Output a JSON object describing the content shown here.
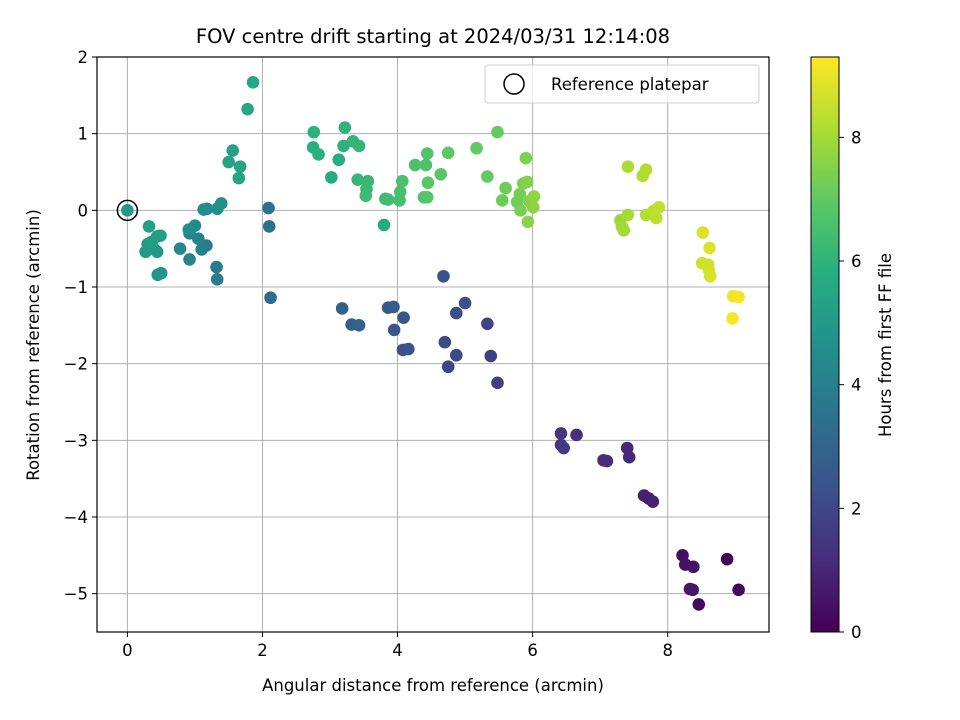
{
  "chart_data": {
    "type": "scatter",
    "title": "FOV centre drift starting at 2024/03/31 12:14:08",
    "xlabel": "Angular distance from reference (arcmin)",
    "ylabel": "Rotation from reference (arcmin)",
    "xlim": [
      -0.45,
      9.5
    ],
    "ylim": [
      -5.5,
      2.0
    ],
    "xticks": [
      0,
      2,
      4,
      6,
      8
    ],
    "yticks": [
      -5,
      -4,
      -3,
      -2,
      -1,
      0,
      1,
      2
    ],
    "grid": true,
    "legend": {
      "position": "top-right",
      "entries": [
        "Reference platepar"
      ]
    },
    "reference_point": {
      "x": 0,
      "y": 0
    },
    "colorbar": {
      "label": "Hours from first FF file",
      "colormap": "viridis",
      "range": [
        0,
        9.3
      ],
      "ticks": [
        0,
        2,
        4,
        6,
        8
      ]
    },
    "points": [
      {
        "x": 0.0,
        "y": 0.0,
        "c": 5.0
      },
      {
        "x": 8.88,
        "y": -4.55,
        "c": 0.05
      },
      {
        "x": 9.05,
        "y": -4.95,
        "c": 0.1
      },
      {
        "x": 8.46,
        "y": -5.14,
        "c": 0.3
      },
      {
        "x": 8.22,
        "y": -4.5,
        "c": 0.4
      },
      {
        "x": 8.26,
        "y": -4.62,
        "c": 0.45
      },
      {
        "x": 8.38,
        "y": -4.65,
        "c": 0.5
      },
      {
        "x": 8.33,
        "y": -4.94,
        "c": 0.55
      },
      {
        "x": 8.37,
        "y": -4.95,
        "c": 0.6
      },
      {
        "x": 7.65,
        "y": -3.72,
        "c": 0.8
      },
      {
        "x": 7.72,
        "y": -3.76,
        "c": 0.85
      },
      {
        "x": 7.78,
        "y": -3.8,
        "c": 0.9
      },
      {
        "x": 7.4,
        "y": -3.1,
        "c": 1.0
      },
      {
        "x": 7.43,
        "y": -3.22,
        "c": 1.05
      },
      {
        "x": 7.05,
        "y": -3.26,
        "c": 1.1
      },
      {
        "x": 7.1,
        "y": -3.27,
        "c": 1.15
      },
      {
        "x": 6.65,
        "y": -2.93,
        "c": 1.3
      },
      {
        "x": 6.42,
        "y": -2.91,
        "c": 1.4
      },
      {
        "x": 6.42,
        "y": -3.06,
        "c": 1.45
      },
      {
        "x": 6.46,
        "y": -3.1,
        "c": 1.5
      },
      {
        "x": 5.48,
        "y": -2.25,
        "c": 1.7
      },
      {
        "x": 5.38,
        "y": -1.9,
        "c": 1.8
      },
      {
        "x": 5.33,
        "y": -1.48,
        "c": 1.9
      },
      {
        "x": 4.75,
        "y": -2.04,
        "c": 2.0
      },
      {
        "x": 4.87,
        "y": -1.89,
        "c": 2.05
      },
      {
        "x": 4.7,
        "y": -1.72,
        "c": 2.1
      },
      {
        "x": 4.87,
        "y": -1.34,
        "c": 2.2
      },
      {
        "x": 5.0,
        "y": -1.21,
        "c": 2.25
      },
      {
        "x": 4.68,
        "y": -0.86,
        "c": 2.3
      },
      {
        "x": 4.08,
        "y": -1.82,
        "c": 2.4
      },
      {
        "x": 4.16,
        "y": -1.81,
        "c": 2.45
      },
      {
        "x": 3.95,
        "y": -1.56,
        "c": 2.5
      },
      {
        "x": 4.09,
        "y": -1.4,
        "c": 2.55
      },
      {
        "x": 3.86,
        "y": -1.27,
        "c": 2.6
      },
      {
        "x": 3.94,
        "y": -1.26,
        "c": 2.65
      },
      {
        "x": 3.18,
        "y": -1.28,
        "c": 2.8
      },
      {
        "x": 3.32,
        "y": -1.49,
        "c": 2.85
      },
      {
        "x": 3.43,
        "y": -1.5,
        "c": 2.9
      },
      {
        "x": 2.12,
        "y": -1.14,
        "c": 3.2
      },
      {
        "x": 2.1,
        "y": -0.21,
        "c": 3.4
      },
      {
        "x": 2.09,
        "y": 0.03,
        "c": 3.5
      },
      {
        "x": 1.32,
        "y": -0.74,
        "c": 3.8
      },
      {
        "x": 1.33,
        "y": -0.9,
        "c": 3.85
      },
      {
        "x": 1.17,
        "y": -0.46,
        "c": 3.9
      },
      {
        "x": 1.1,
        "y": -0.51,
        "c": 4.0
      },
      {
        "x": 1.05,
        "y": -0.37,
        "c": 4.1
      },
      {
        "x": 0.92,
        "y": -0.64,
        "c": 4.15
      },
      {
        "x": 0.92,
        "y": -0.3,
        "c": 4.2
      },
      {
        "x": 0.78,
        "y": -0.5,
        "c": 4.3
      },
      {
        "x": 1.0,
        "y": -0.2,
        "c": 4.4
      },
      {
        "x": 0.91,
        "y": -0.25,
        "c": 4.45
      },
      {
        "x": 1.13,
        "y": 0.01,
        "c": 4.5
      },
      {
        "x": 1.18,
        "y": 0.02,
        "c": 4.55
      },
      {
        "x": 1.33,
        "y": 0.02,
        "c": 4.6
      },
      {
        "x": 1.39,
        "y": 0.09,
        "c": 4.65
      },
      {
        "x": 0.5,
        "y": -0.82,
        "c": 4.8
      },
      {
        "x": 0.45,
        "y": -0.84,
        "c": 4.85
      },
      {
        "x": 0.44,
        "y": -0.54,
        "c": 4.9
      },
      {
        "x": 0.39,
        "y": -0.5,
        "c": 4.95
      },
      {
        "x": 0.27,
        "y": -0.54,
        "c": 5.0
      },
      {
        "x": 0.3,
        "y": -0.44,
        "c": 5.05
      },
      {
        "x": 0.36,
        "y": -0.41,
        "c": 5.1
      },
      {
        "x": 0.44,
        "y": -0.34,
        "c": 5.15
      },
      {
        "x": 0.49,
        "y": -0.33,
        "c": 5.2
      },
      {
        "x": 0.32,
        "y": -0.21,
        "c": 5.25
      },
      {
        "x": 1.5,
        "y": 0.63,
        "c": 5.3
      },
      {
        "x": 1.56,
        "y": 0.78,
        "c": 5.35
      },
      {
        "x": 1.65,
        "y": 0.42,
        "c": 5.4
      },
      {
        "x": 1.67,
        "y": 0.57,
        "c": 5.45
      },
      {
        "x": 1.78,
        "y": 1.32,
        "c": 5.5
      },
      {
        "x": 1.86,
        "y": 1.67,
        "c": 5.55
      },
      {
        "x": 3.8,
        "y": -0.19,
        "c": 5.6
      },
      {
        "x": 3.02,
        "y": 0.43,
        "c": 5.7
      },
      {
        "x": 3.13,
        "y": 0.66,
        "c": 5.75
      },
      {
        "x": 2.75,
        "y": 0.82,
        "c": 5.8
      },
      {
        "x": 2.83,
        "y": 0.73,
        "c": 5.85
      },
      {
        "x": 2.76,
        "y": 1.02,
        "c": 5.9
      },
      {
        "x": 3.2,
        "y": 0.84,
        "c": 5.95
      },
      {
        "x": 3.22,
        "y": 1.08,
        "c": 6.0
      },
      {
        "x": 3.34,
        "y": 0.9,
        "c": 6.05
      },
      {
        "x": 3.43,
        "y": 0.84,
        "c": 6.1
      },
      {
        "x": 3.41,
        "y": 0.4,
        "c": 6.15
      },
      {
        "x": 3.56,
        "y": 0.38,
        "c": 6.2
      },
      {
        "x": 3.54,
        "y": 0.28,
        "c": 6.25
      },
      {
        "x": 3.53,
        "y": 0.19,
        "c": 6.3
      },
      {
        "x": 3.82,
        "y": 0.15,
        "c": 6.35
      },
      {
        "x": 3.86,
        "y": 0.14,
        "c": 6.4
      },
      {
        "x": 4.03,
        "y": 0.13,
        "c": 6.45
      },
      {
        "x": 4.04,
        "y": 0.24,
        "c": 6.5
      },
      {
        "x": 4.07,
        "y": 0.38,
        "c": 6.55
      },
      {
        "x": 4.26,
        "y": 0.59,
        "c": 6.6
      },
      {
        "x": 4.42,
        "y": 0.59,
        "c": 6.65
      },
      {
        "x": 4.44,
        "y": 0.74,
        "c": 6.7
      },
      {
        "x": 4.39,
        "y": 0.17,
        "c": 6.75
      },
      {
        "x": 4.44,
        "y": 0.17,
        "c": 6.8
      },
      {
        "x": 4.45,
        "y": 0.36,
        "c": 6.85
      },
      {
        "x": 4.64,
        "y": 0.47,
        "c": 6.9
      },
      {
        "x": 4.75,
        "y": 0.75,
        "c": 6.95
      },
      {
        "x": 5.17,
        "y": 0.81,
        "c": 7.0
      },
      {
        "x": 5.33,
        "y": 0.44,
        "c": 7.05
      },
      {
        "x": 5.48,
        "y": 1.02,
        "c": 7.1
      },
      {
        "x": 5.55,
        "y": 0.13,
        "c": 7.15
      },
      {
        "x": 5.6,
        "y": 0.29,
        "c": 7.2
      },
      {
        "x": 5.77,
        "y": 0.11,
        "c": 7.25
      },
      {
        "x": 5.81,
        "y": 0.21,
        "c": 7.3
      },
      {
        "x": 5.82,
        "y": 0.0,
        "c": 7.35
      },
      {
        "x": 5.86,
        "y": 0.35,
        "c": 7.4
      },
      {
        "x": 5.9,
        "y": 0.68,
        "c": 7.45
      },
      {
        "x": 5.92,
        "y": 0.37,
        "c": 7.5
      },
      {
        "x": 5.95,
        "y": 0.12,
        "c": 7.55
      },
      {
        "x": 5.93,
        "y": -0.15,
        "c": 7.6
      },
      {
        "x": 6.01,
        "y": 0.04,
        "c": 7.65
      },
      {
        "x": 6.02,
        "y": 0.18,
        "c": 7.7
      },
      {
        "x": 7.3,
        "y": -0.13,
        "c": 7.9
      },
      {
        "x": 7.32,
        "y": -0.21,
        "c": 7.95
      },
      {
        "x": 7.35,
        "y": -0.26,
        "c": 8.0
      },
      {
        "x": 7.41,
        "y": -0.06,
        "c": 8.05
      },
      {
        "x": 7.41,
        "y": 0.57,
        "c": 8.1
      },
      {
        "x": 7.63,
        "y": 0.45,
        "c": 8.15
      },
      {
        "x": 7.68,
        "y": 0.53,
        "c": 8.2
      },
      {
        "x": 7.68,
        "y": -0.06,
        "c": 8.25
      },
      {
        "x": 7.79,
        "y": -0.01,
        "c": 8.3
      },
      {
        "x": 7.83,
        "y": -0.1,
        "c": 8.35
      },
      {
        "x": 7.87,
        "y": 0.04,
        "c": 8.4
      },
      {
        "x": 8.51,
        "y": -0.69,
        "c": 8.6
      },
      {
        "x": 8.6,
        "y": -0.71,
        "c": 8.65
      },
      {
        "x": 8.61,
        "y": -0.78,
        "c": 8.7
      },
      {
        "x": 8.63,
        "y": -0.86,
        "c": 8.75
      },
      {
        "x": 8.52,
        "y": -0.29,
        "c": 8.8
      },
      {
        "x": 8.62,
        "y": -0.49,
        "c": 8.85
      },
      {
        "x": 8.97,
        "y": -1.12,
        "c": 9.1
      },
      {
        "x": 9.05,
        "y": -1.13,
        "c": 9.15
      },
      {
        "x": 8.96,
        "y": -1.41,
        "c": 9.2
      }
    ]
  }
}
